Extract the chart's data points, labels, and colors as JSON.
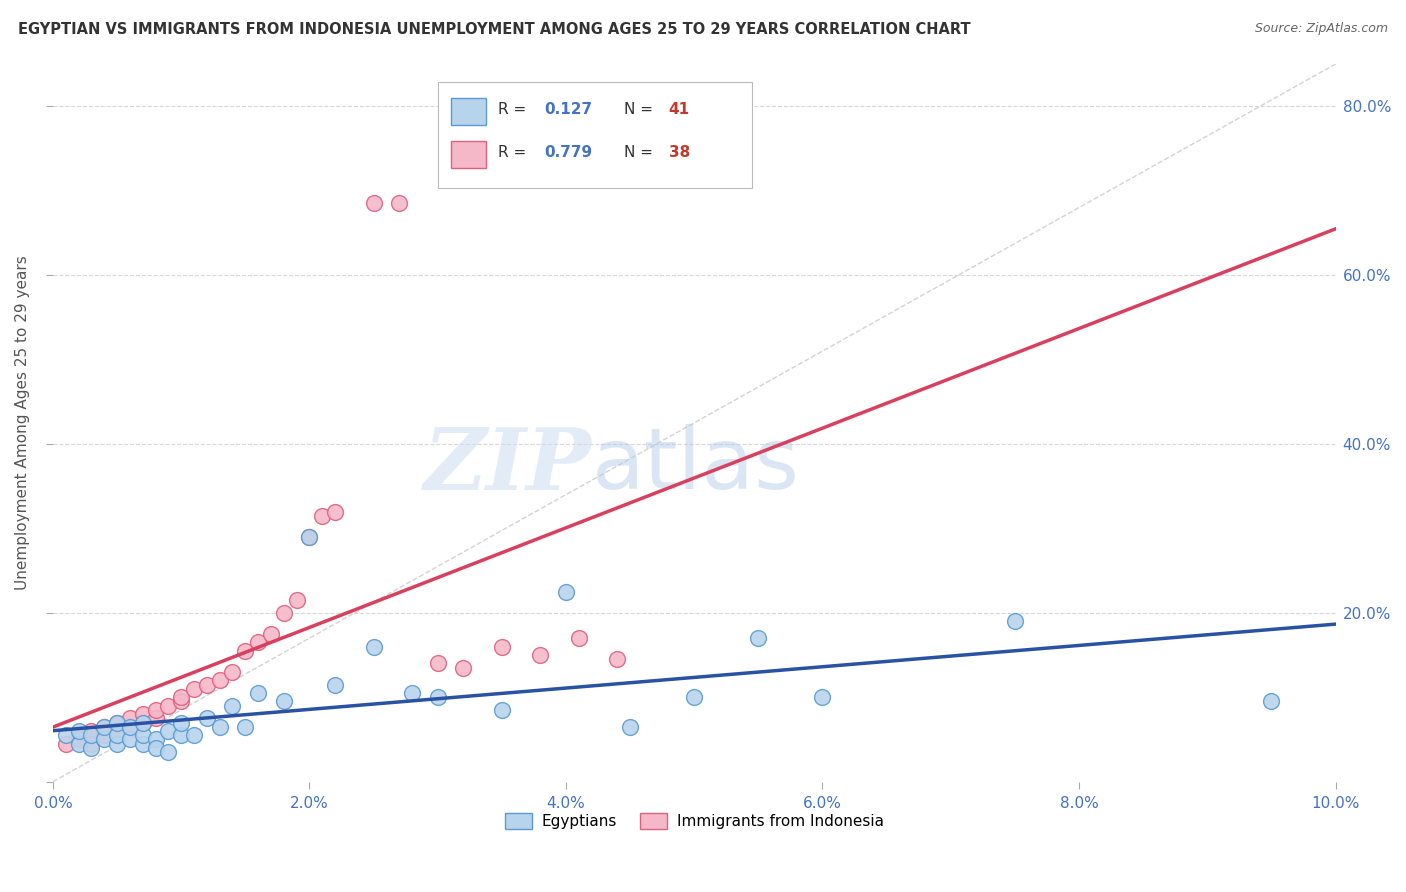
{
  "title": "EGYPTIAN VS IMMIGRANTS FROM INDONESIA UNEMPLOYMENT AMONG AGES 25 TO 29 YEARS CORRELATION CHART",
  "source": "Source: ZipAtlas.com",
  "ylabel": "Unemployment Among Ages 25 to 29 years",
  "xlim": [
    0,
    0.1
  ],
  "ylim": [
    0,
    0.85
  ],
  "xticks": [
    0.0,
    0.02,
    0.04,
    0.06,
    0.08,
    0.1
  ],
  "yticks": [
    0.0,
    0.2,
    0.4,
    0.6,
    0.8
  ],
  "xticklabels": [
    "0.0%",
    "2.0%",
    "4.0%",
    "6.0%",
    "8.0%",
    "10.0%"
  ],
  "yticklabels_right": [
    "",
    "20.0%",
    "40.0%",
    "60.0%",
    "80.0%"
  ],
  "legend_r1_val": "0.127",
  "legend_n1_val": "41",
  "legend_r2_val": "0.779",
  "legend_n2_val": "38",
  "color_egyptian_face": "#b8d4ec",
  "color_egyptian_edge": "#5b9bd5",
  "color_indonesia_face": "#f4b8c8",
  "color_indonesia_edge": "#e06080",
  "color_line_egyptian": "#2952a3",
  "color_line_indonesia": "#d94060",
  "color_diagonal": "#c8c8c8",
  "color_grid": "#d8d8d8",
  "color_title": "#333333",
  "color_source": "#666666",
  "color_axis_blue": "#4472c4",
  "color_r_val": "#4472c4",
  "color_n_val": "#c0392b",
  "egyptians_x": [
    0.001,
    0.002,
    0.002,
    0.003,
    0.003,
    0.004,
    0.004,
    0.005,
    0.005,
    0.005,
    0.006,
    0.006,
    0.007,
    0.007,
    0.007,
    0.008,
    0.008,
    0.009,
    0.009,
    0.01,
    0.01,
    0.011,
    0.012,
    0.013,
    0.014,
    0.015,
    0.016,
    0.018,
    0.02,
    0.022,
    0.025,
    0.028,
    0.03,
    0.035,
    0.04,
    0.045,
    0.05,
    0.055,
    0.06,
    0.075,
    0.095
  ],
  "egyptians_y": [
    0.055,
    0.045,
    0.06,
    0.04,
    0.055,
    0.05,
    0.065,
    0.045,
    0.055,
    0.07,
    0.05,
    0.065,
    0.045,
    0.055,
    0.07,
    0.05,
    0.04,
    0.06,
    0.035,
    0.055,
    0.07,
    0.055,
    0.075,
    0.065,
    0.09,
    0.065,
    0.105,
    0.095,
    0.29,
    0.115,
    0.16,
    0.105,
    0.1,
    0.085,
    0.225,
    0.065,
    0.1,
    0.17,
    0.1,
    0.19,
    0.095
  ],
  "indonesia_x": [
    0.001,
    0.002,
    0.002,
    0.003,
    0.003,
    0.004,
    0.004,
    0.005,
    0.005,
    0.006,
    0.006,
    0.007,
    0.007,
    0.008,
    0.008,
    0.009,
    0.01,
    0.01,
    0.011,
    0.012,
    0.013,
    0.014,
    0.015,
    0.016,
    0.017,
    0.018,
    0.019,
    0.02,
    0.021,
    0.022,
    0.025,
    0.027,
    0.03,
    0.032,
    0.035,
    0.038,
    0.041,
    0.044
  ],
  "indonesia_y": [
    0.045,
    0.055,
    0.05,
    0.06,
    0.045,
    0.065,
    0.055,
    0.07,
    0.06,
    0.065,
    0.075,
    0.07,
    0.08,
    0.075,
    0.085,
    0.09,
    0.095,
    0.1,
    0.11,
    0.115,
    0.12,
    0.13,
    0.155,
    0.165,
    0.175,
    0.2,
    0.215,
    0.29,
    0.315,
    0.32,
    0.685,
    0.685,
    0.14,
    0.135,
    0.16,
    0.15,
    0.17,
    0.145
  ],
  "watermark_zip": "ZIP",
  "watermark_atlas": "atlas",
  "background_color": "#ffffff"
}
